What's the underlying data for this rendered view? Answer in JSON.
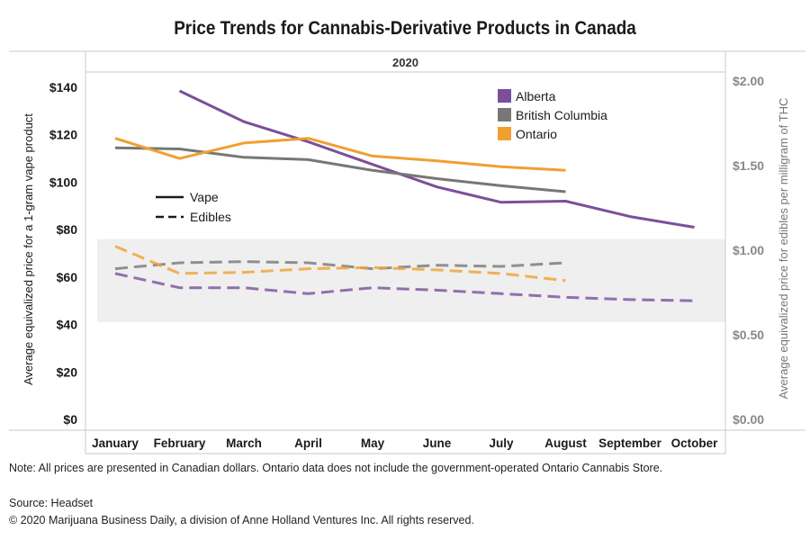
{
  "chart_data": {
    "type": "line",
    "title": "Price Trends for Cannabis-Derivative Products in Canada",
    "year_label": "2020",
    "categories": [
      "January",
      "February",
      "March",
      "April",
      "May",
      "June",
      "July",
      "August",
      "September",
      "October"
    ],
    "ylabel_left": "Average equivalized price for a 1-gram vape product",
    "ylabel_right": "Average equivalized price for edibles per milligram of THC",
    "ylim_left": [
      0,
      140
    ],
    "ylim_right": [
      0,
      2.0
    ],
    "yticks_left": [
      "$0",
      "$20",
      "$40",
      "$60",
      "$80",
      "$100",
      "$120",
      "$140"
    ],
    "yticks_right": [
      "$0.00",
      "$0.50",
      "$1.00",
      "$1.50",
      "$2.00"
    ],
    "legend_regions": [
      "Alberta",
      "British Columbia",
      "Ontario"
    ],
    "legend_styles": [
      "Vape",
      "Edibles"
    ],
    "colors": {
      "Alberta": "#7b4f9a",
      "British Columbia": "#777777",
      "Ontario": "#f0a030"
    },
    "shaded_band_left": [
      41,
      76
    ],
    "series": [
      {
        "name": "Alberta",
        "style": "Vape",
        "axis": "left",
        "values": [
          null,
          138.5,
          125.5,
          117,
          107.5,
          98,
          91.5,
          92,
          85.5,
          81
        ]
      },
      {
        "name": "British Columbia",
        "style": "Vape",
        "axis": "left",
        "values": [
          114.5,
          114,
          110.5,
          109.5,
          105,
          101.5,
          98.5,
          96,
          null,
          null
        ]
      },
      {
        "name": "Ontario",
        "style": "Vape",
        "axis": "left",
        "values": [
          118.5,
          110,
          116.5,
          118.5,
          111,
          109,
          106.5,
          105,
          null,
          null
        ]
      },
      {
        "name": "Alberta",
        "style": "Edibles",
        "axis": "left",
        "values": [
          61.5,
          55.5,
          55.5,
          53,
          55.5,
          54.5,
          53,
          51.5,
          50.5,
          50
        ]
      },
      {
        "name": "British Columbia",
        "style": "Edibles",
        "axis": "left",
        "values": [
          63.5,
          66,
          66.5,
          66,
          63.5,
          65,
          64.5,
          66,
          null,
          null
        ]
      },
      {
        "name": "Ontario",
        "style": "Edibles",
        "axis": "left",
        "values": [
          73,
          61.5,
          62,
          63.5,
          64,
          63,
          61.5,
          58.5,
          null,
          null
        ]
      }
    ]
  },
  "footer": {
    "note": "Note: All prices are presented in Canadian dollars. Ontario data does not include the government-operated Ontario Cannabis Store.",
    "source": "Source: Headset",
    "copyright": "© 2020 Marijuana Business Daily, a division of Anne Holland Ventures Inc. All rights reserved."
  }
}
